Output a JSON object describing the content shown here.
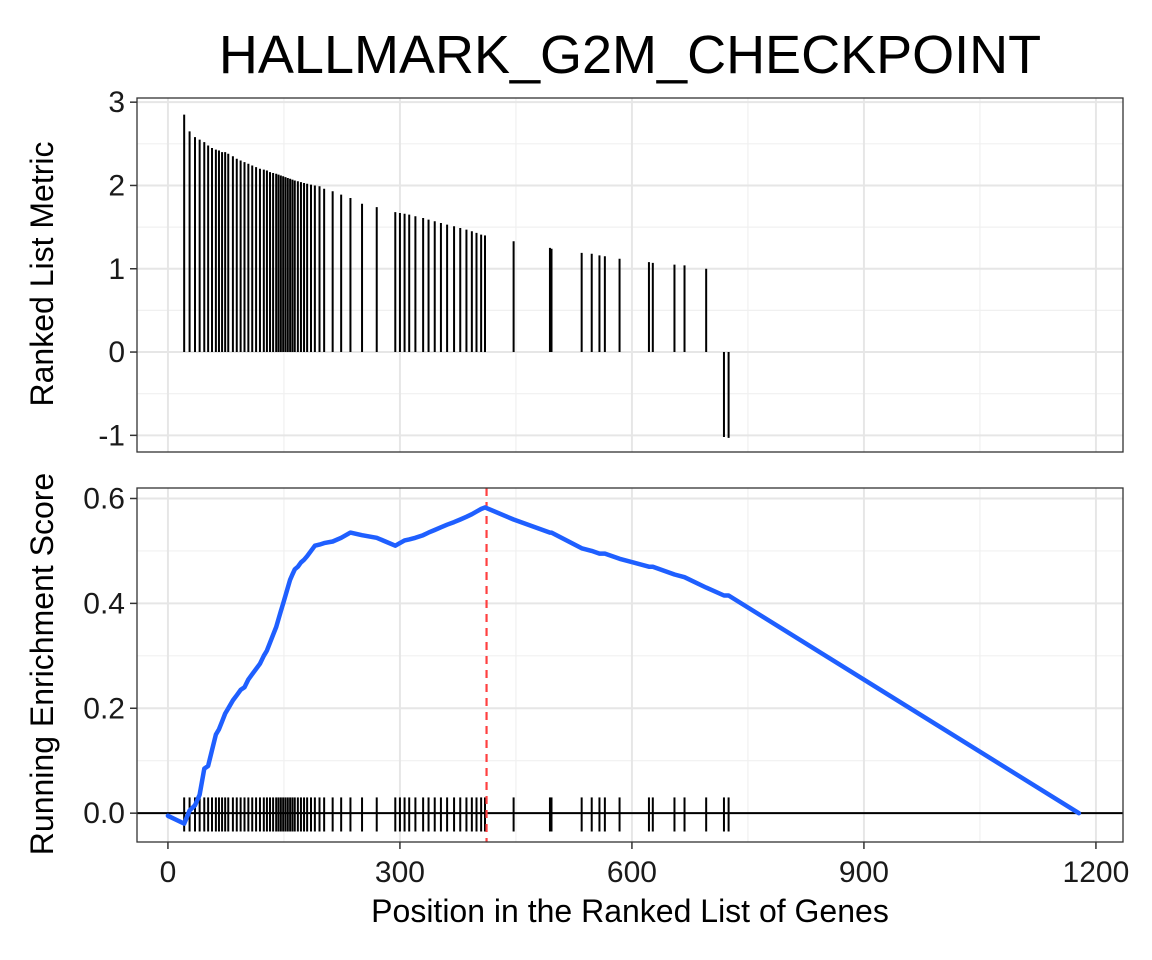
{
  "chart_data": {
    "type": "gsea-enrichment-plot",
    "title": "HALLMARK_G2M_CHECKPOINT",
    "xlabel": "Position in the Ranked List of Genes",
    "xlim": [
      -40,
      1235
    ],
    "x_ticks": [
      0,
      300,
      600,
      900,
      1200
    ],
    "x_tick_labels": [
      "0",
      "300",
      "600",
      "900",
      "1200"
    ],
    "colors": {
      "running_score": "#1f5fff",
      "peak_line": "#ff4040",
      "bars": "#000000",
      "hits": "#000000"
    },
    "panels": [
      {
        "id": "ranked-metric",
        "type": "bar",
        "ylabel": "Ranked List Metric",
        "ylim": [
          -1.2,
          3.05
        ],
        "y_ticks": [
          -1,
          0,
          1,
          2,
          3
        ],
        "y_tick_labels": [
          "-1",
          "0",
          "1",
          "2",
          "3"
        ],
        "grid": true,
        "series": [
          {
            "x": [
              21,
              28,
              35,
              41,
              47,
              52,
              57,
              62,
              66,
              70,
              74,
              78,
              84,
              89,
              94,
              99,
              104,
              109,
              114,
              119,
              124,
              128,
              132,
              136,
              140,
              143,
              146,
              149,
              152,
              155,
              158,
              161,
              164,
              168,
              172,
              176,
              180,
              185,
              190,
              196,
              202,
              213,
              224,
              236,
              251,
              270,
              294,
              300,
              306,
              312,
              320,
              330,
              337,
              345,
              353,
              361,
              370,
              378,
              386,
              393,
              399,
              405,
              410,
              447,
              494,
              496,
              535,
              548,
              558,
              565,
              584,
              622,
              627,
              655,
              668,
              696,
              719,
              725
            ],
            "values": [
              2.85,
              2.65,
              2.58,
              2.55,
              2.52,
              2.48,
              2.45,
              2.43,
              2.42,
              2.4,
              2.4,
              2.38,
              2.35,
              2.32,
              2.3,
              2.28,
              2.26,
              2.24,
              2.22,
              2.2,
              2.19,
              2.18,
              2.16,
              2.15,
              2.14,
              2.13,
              2.12,
              2.11,
              2.1,
              2.09,
              2.08,
              2.07,
              2.06,
              2.05,
              2.04,
              2.03,
              2.02,
              2.01,
              2.0,
              1.99,
              1.96,
              1.93,
              1.89,
              1.85,
              1.78,
              1.74,
              1.68,
              1.67,
              1.66,
              1.65,
              1.63,
              1.61,
              1.59,
              1.57,
              1.55,
              1.53,
              1.51,
              1.49,
              1.47,
              1.45,
              1.43,
              1.41,
              1.4,
              1.33,
              1.25,
              1.24,
              1.19,
              1.18,
              1.16,
              1.15,
              1.12,
              1.08,
              1.07,
              1.05,
              1.04,
              1.0,
              -1.02,
              -1.03
            ]
          }
        ]
      },
      {
        "id": "running-es",
        "type": "line",
        "ylabel": "Running Enrichment Score",
        "ylim": [
          -0.055,
          0.62
        ],
        "y_ticks": [
          0.0,
          0.2,
          0.4,
          0.6
        ],
        "y_tick_labels": [
          "0.0",
          "0.2",
          "0.4",
          "0.6"
        ],
        "grid": true,
        "series": [
          {
            "x": [
              0,
              21,
              28,
              35,
              41,
              47,
              52,
              57,
              62,
              66,
              70,
              74,
              78,
              84,
              89,
              94,
              99,
              104,
              109,
              114,
              119,
              124,
              128,
              132,
              136,
              140,
              143,
              146,
              149,
              152,
              155,
              158,
              161,
              164,
              168,
              172,
              176,
              180,
              185,
              190,
              196,
              202,
              213,
              224,
              236,
              251,
              270,
              294,
              300,
              306,
              312,
              320,
              330,
              337,
              345,
              353,
              361,
              370,
              378,
              386,
              393,
              399,
              405,
              410,
              447,
              494,
              496,
              535,
              548,
              558,
              565,
              584,
              622,
              627,
              655,
              668,
              696,
              719,
              725,
              1178
            ],
            "values": [
              -0.005,
              -0.02,
              0.005,
              0.015,
              0.035,
              0.085,
              0.09,
              0.12,
              0.15,
              0.16,
              0.175,
              0.19,
              0.2,
              0.215,
              0.225,
              0.235,
              0.24,
              0.255,
              0.265,
              0.275,
              0.285,
              0.3,
              0.31,
              0.325,
              0.34,
              0.355,
              0.37,
              0.385,
              0.4,
              0.415,
              0.43,
              0.445,
              0.455,
              0.465,
              0.47,
              0.478,
              0.483,
              0.49,
              0.5,
              0.51,
              0.512,
              0.515,
              0.518,
              0.525,
              0.535,
              0.53,
              0.525,
              0.51,
              0.515,
              0.52,
              0.522,
              0.525,
              0.53,
              0.535,
              0.54,
              0.545,
              0.55,
              0.555,
              0.56,
              0.565,
              0.57,
              0.575,
              0.58,
              0.583,
              0.56,
              0.535,
              0.535,
              0.505,
              0.5,
              0.495,
              0.495,
              0.485,
              0.47,
              0.47,
              0.455,
              0.45,
              0.43,
              0.415,
              0.415,
              0.0
            ]
          }
        ],
        "peak_x": 412,
        "hit_x": [
          21,
          28,
          35,
          41,
          47,
          52,
          57,
          62,
          66,
          70,
          74,
          78,
          84,
          89,
          94,
          99,
          104,
          109,
          114,
          119,
          124,
          128,
          132,
          136,
          140,
          143,
          146,
          149,
          152,
          155,
          158,
          161,
          164,
          168,
          172,
          176,
          180,
          185,
          190,
          196,
          202,
          213,
          224,
          236,
          251,
          270,
          294,
          300,
          306,
          312,
          320,
          330,
          337,
          345,
          353,
          361,
          370,
          378,
          386,
          393,
          399,
          405,
          410,
          447,
          494,
          496,
          535,
          548,
          558,
          565,
          584,
          622,
          627,
          655,
          668,
          696,
          719,
          725
        ]
      }
    ]
  }
}
